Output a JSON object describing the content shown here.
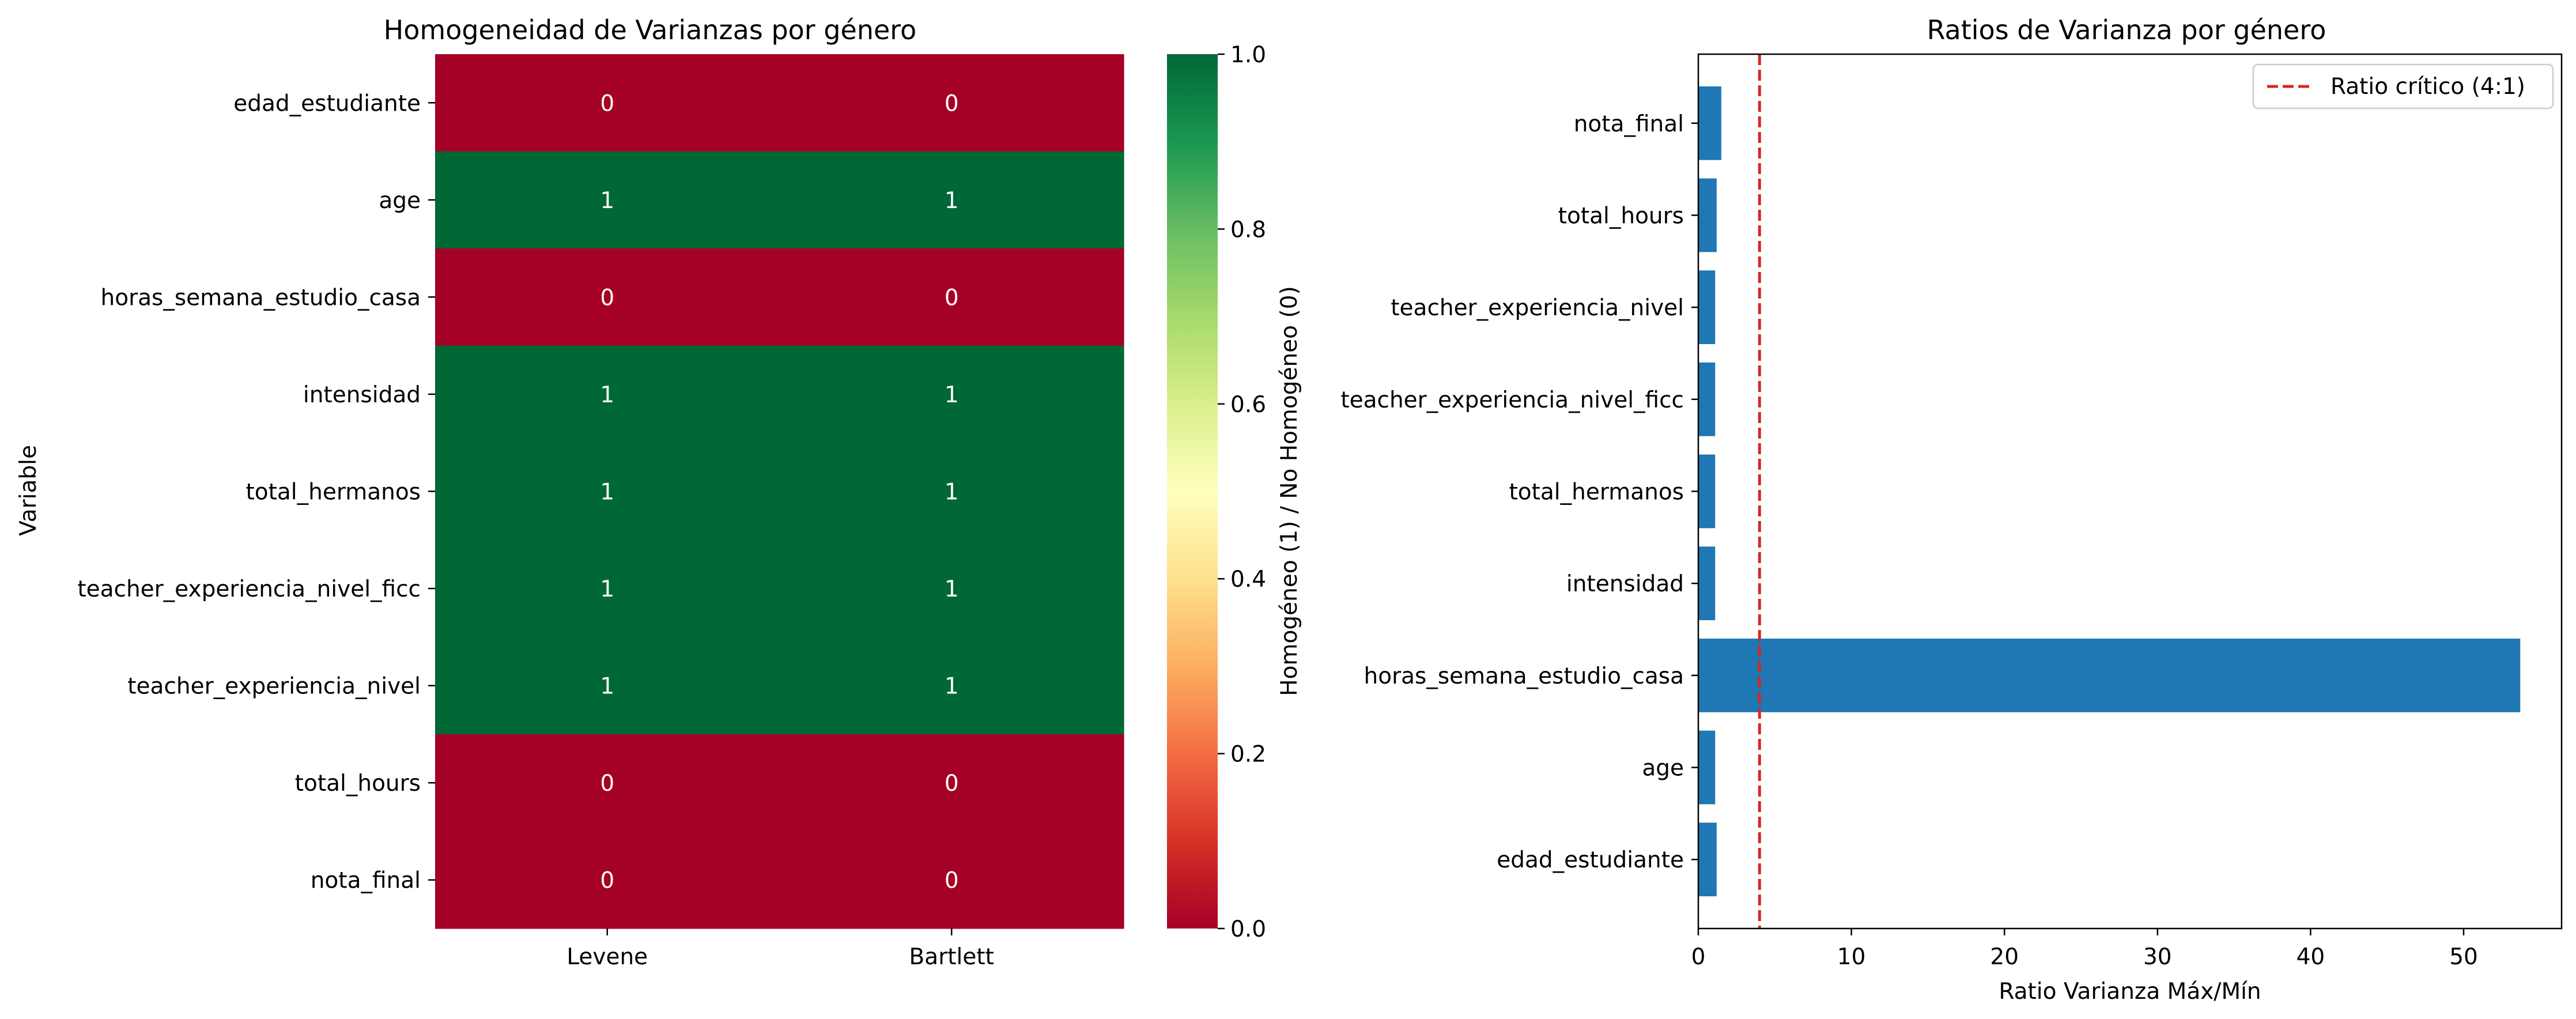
{
  "chart_data": [
    {
      "type": "heatmap",
      "title": "Homogeneidad de Varianzas por género",
      "xlabel": "",
      "ylabel": "Variable",
      "columns": [
        "Levene",
        "Bartlett"
      ],
      "rows": [
        "edad_estudiante",
        "age",
        "horas_semana_estudio_casa",
        "intensidad",
        "total_hermanos",
        "teacher_experiencia_nivel_ficc",
        "teacher_experiencia_nivel",
        "total_hours",
        "nota_final"
      ],
      "values": [
        [
          0,
          0
        ],
        [
          1,
          1
        ],
        [
          0,
          0
        ],
        [
          1,
          1
        ],
        [
          1,
          1
        ],
        [
          1,
          1
        ],
        [
          1,
          1
        ],
        [
          0,
          0
        ],
        [
          0,
          0
        ]
      ],
      "colorbar": {
        "label": "Homogéneo (1) / No Homogéneo (0)",
        "range": [
          0,
          1
        ],
        "ticks": [
          "0.0",
          "0.2",
          "0.4",
          "0.6",
          "0.8",
          "1.0"
        ],
        "colormap": "RdYlGn",
        "low_color": "#a50026",
        "high_color": "#006837"
      }
    },
    {
      "type": "bar",
      "orientation": "horizontal",
      "title": "Ratios de Varianza por género",
      "xlabel": "Ratio Varianza Máx/Mín",
      "ylabel": "",
      "categories": [
        "edad_estudiante",
        "age",
        "horas_semana_estudio_casa",
        "intensidad",
        "total_hermanos",
        "teacher_experiencia_nivel_ficc",
        "teacher_experiencia_nivel",
        "total_hours",
        "nota_final"
      ],
      "values": [
        1.2,
        1.1,
        53.7,
        1.1,
        1.1,
        1.1,
        1.1,
        1.2,
        1.5
      ],
      "xlim": [
        0,
        56.4
      ],
      "xticks": [
        0,
        10,
        20,
        30,
        40,
        50
      ],
      "bar_color": "#1f77b4",
      "reference_line": {
        "x": 4,
        "label": "Ratio crítico (4:1)",
        "color": "#d62728",
        "style": "dashed"
      },
      "legend_position": "top-right"
    }
  ]
}
